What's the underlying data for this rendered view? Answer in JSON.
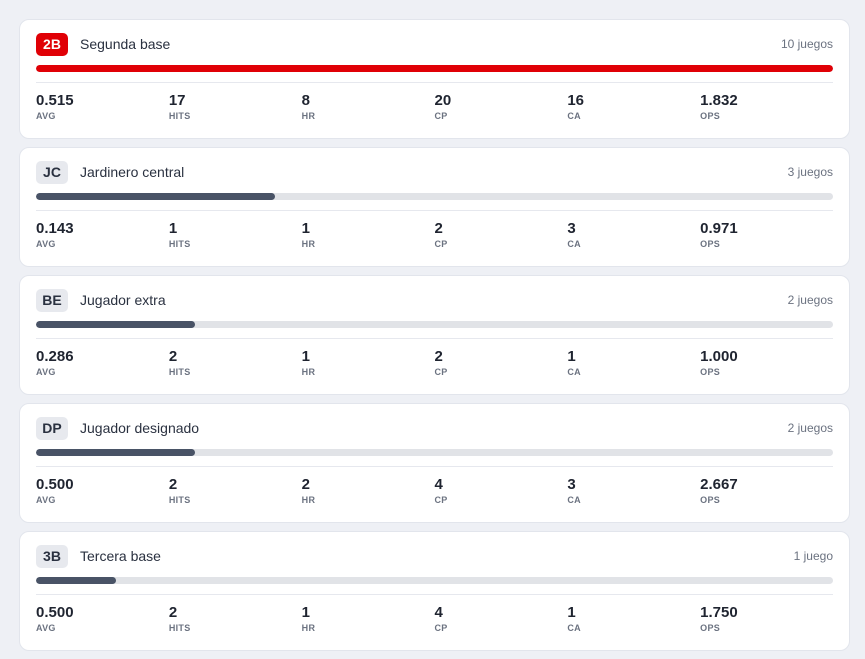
{
  "positions": [
    {
      "code": "2B",
      "name": "Segunda base",
      "games": "10 juegos",
      "active": true,
      "share": 1.0,
      "stats": [
        {
          "v": "0.515",
          "l": "AVG"
        },
        {
          "v": "17",
          "l": "HITS"
        },
        {
          "v": "8",
          "l": "HR"
        },
        {
          "v": "20",
          "l": "CP"
        },
        {
          "v": "16",
          "l": "CA"
        },
        {
          "v": "1.832",
          "l": "OPS"
        }
      ]
    },
    {
      "code": "JC",
      "name": "Jardinero central",
      "games": "3 juegos",
      "active": false,
      "share": 0.3,
      "stats": [
        {
          "v": "0.143",
          "l": "AVG"
        },
        {
          "v": "1",
          "l": "HITS"
        },
        {
          "v": "1",
          "l": "HR"
        },
        {
          "v": "2",
          "l": "CP"
        },
        {
          "v": "3",
          "l": "CA"
        },
        {
          "v": "0.971",
          "l": "OPS"
        }
      ]
    },
    {
      "code": "BE",
      "name": "Jugador extra",
      "games": "2 juegos",
      "active": false,
      "share": 0.2,
      "stats": [
        {
          "v": "0.286",
          "l": "AVG"
        },
        {
          "v": "2",
          "l": "HITS"
        },
        {
          "v": "1",
          "l": "HR"
        },
        {
          "v": "2",
          "l": "CP"
        },
        {
          "v": "1",
          "l": "CA"
        },
        {
          "v": "1.000",
          "l": "OPS"
        }
      ]
    },
    {
      "code": "DP",
      "name": "Jugador designado",
      "games": "2 juegos",
      "active": false,
      "share": 0.2,
      "stats": [
        {
          "v": "0.500",
          "l": "AVG"
        },
        {
          "v": "2",
          "l": "HITS"
        },
        {
          "v": "2",
          "l": "HR"
        },
        {
          "v": "4",
          "l": "CP"
        },
        {
          "v": "3",
          "l": "CA"
        },
        {
          "v": "2.667",
          "l": "OPS"
        }
      ]
    },
    {
      "code": "3B",
      "name": "Tercera base",
      "games": "1 juego",
      "active": false,
      "share": 0.1,
      "stats": [
        {
          "v": "0.500",
          "l": "AVG"
        },
        {
          "v": "2",
          "l": "HITS"
        },
        {
          "v": "1",
          "l": "HR"
        },
        {
          "v": "4",
          "l": "CP"
        },
        {
          "v": "1",
          "l": "CA"
        },
        {
          "v": "1.750",
          "l": "OPS"
        }
      ]
    }
  ],
  "colors": {
    "accent": "#e00006",
    "bar": "#495366",
    "track": "#e1e3e7"
  }
}
